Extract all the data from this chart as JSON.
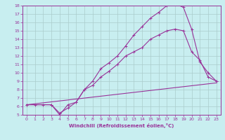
{
  "xlabel": "Windchill (Refroidissement éolien,°C)",
  "xlim": [
    -0.5,
    23.5
  ],
  "ylim": [
    5,
    18
  ],
  "xticks": [
    0,
    1,
    2,
    3,
    4,
    5,
    6,
    7,
    8,
    9,
    10,
    11,
    12,
    13,
    14,
    15,
    16,
    17,
    18,
    19,
    20,
    21,
    22,
    23
  ],
  "yticks": [
    5,
    6,
    7,
    8,
    9,
    10,
    11,
    12,
    13,
    14,
    15,
    16,
    17,
    18
  ],
  "bg_color": "#c8eef0",
  "line_color": "#993399",
  "grid_color": "#aacccc",
  "curve1_x": [
    0,
    1,
    2,
    3,
    4,
    5,
    6,
    7,
    8,
    9,
    10,
    11,
    12,
    13,
    14,
    15,
    16,
    17,
    18,
    19,
    20,
    21,
    22,
    23
  ],
  "curve1_y": [
    6.2,
    6.2,
    6.2,
    6.2,
    5.2,
    5.8,
    6.5,
    8.0,
    9.0,
    10.5,
    11.2,
    12.0,
    13.2,
    14.5,
    15.5,
    16.5,
    17.2,
    18.0,
    18.2,
    17.8,
    15.2,
    11.3,
    10.0,
    9.0
  ],
  "curve2_x": [
    0,
    3,
    4,
    5,
    6,
    7,
    8,
    9,
    10,
    11,
    12,
    13,
    14,
    15,
    16,
    17,
    18,
    19,
    20,
    21,
    22,
    23
  ],
  "curve2_y": [
    6.2,
    6.2,
    5.0,
    6.2,
    6.5,
    8.0,
    8.5,
    9.5,
    10.2,
    11.0,
    12.0,
    12.5,
    13.0,
    14.0,
    14.5,
    15.0,
    15.2,
    15.0,
    12.5,
    11.5,
    9.5,
    9.0
  ],
  "curve3_x": [
    0,
    23
  ],
  "curve3_y": [
    6.2,
    8.8
  ],
  "tick_fontsize": 4.5,
  "xlabel_fontsize": 5.0
}
